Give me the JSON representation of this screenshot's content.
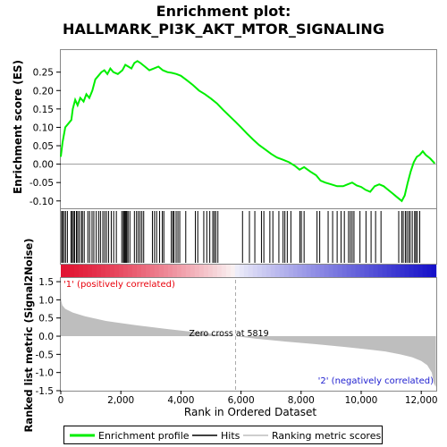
{
  "chart_data": {
    "type": "line",
    "title_line1": "Enrichment plot:",
    "title_line2": "HALLMARK_PI3K_AKT_MTOR_SIGNALING",
    "top_panel": {
      "ylabel": "Enrichment score (ES)",
      "ylim": [
        -0.12,
        0.31
      ],
      "yticks": [
        "0.25",
        "0.20",
        "0.15",
        "0.10",
        "0.05",
        "0.00",
        "-0.05",
        "-0.10"
      ],
      "ytick_values": [
        0.25,
        0.2,
        0.15,
        0.1,
        0.05,
        0.0,
        -0.05,
        -0.1
      ],
      "series_name": "Enrichment profile",
      "color": "#00ee00",
      "x": [
        0,
        60,
        150,
        250,
        350,
        400,
        480,
        560,
        650,
        760,
        850,
        950,
        1050,
        1150,
        1250,
        1350,
        1450,
        1550,
        1650,
        1750,
        1900,
        2050,
        2150,
        2250,
        2350,
        2450,
        2550,
        2650,
        2800,
        2950,
        3100,
        3250,
        3400,
        3550,
        3700,
        3850,
        4000,
        4200,
        4400,
        4600,
        4800,
        5000,
        5200,
        5400,
        5600,
        5819,
        6000,
        6200,
        6400,
        6600,
        6800,
        7000,
        7200,
        7400,
        7600,
        7800,
        7950,
        8100,
        8300,
        8500,
        8650,
        8800,
        9000,
        9200,
        9400,
        9550,
        9700,
        9850,
        10000,
        10150,
        10300,
        10450,
        10600,
        10750,
        10900,
        11050,
        11200,
        11350,
        11450,
        11550,
        11650,
        11750,
        11850,
        11950,
        12050,
        12150,
        12300,
        12450
      ],
      "y": [
        0.02,
        0.06,
        0.1,
        0.11,
        0.12,
        0.15,
        0.175,
        0.16,
        0.18,
        0.17,
        0.19,
        0.18,
        0.2,
        0.23,
        0.24,
        0.25,
        0.255,
        0.245,
        0.26,
        0.25,
        0.245,
        0.255,
        0.27,
        0.265,
        0.26,
        0.275,
        0.28,
        0.275,
        0.265,
        0.255,
        0.26,
        0.265,
        0.255,
        0.25,
        0.248,
        0.245,
        0.24,
        0.228,
        0.215,
        0.2,
        0.19,
        0.178,
        0.165,
        0.148,
        0.132,
        0.115,
        0.1,
        0.083,
        0.067,
        0.052,
        0.04,
        0.028,
        0.018,
        0.012,
        0.005,
        -0.005,
        -0.015,
        -0.008,
        -0.02,
        -0.03,
        -0.045,
        -0.05,
        -0.055,
        -0.06,
        -0.06,
        -0.055,
        -0.05,
        -0.058,
        -0.062,
        -0.07,
        -0.075,
        -0.06,
        -0.055,
        -0.06,
        -0.07,
        -0.08,
        -0.09,
        -0.1,
        -0.085,
        -0.05,
        -0.02,
        0.005,
        0.02,
        0.025,
        0.035,
        0.025,
        0.015,
        0.002
      ]
    },
    "hits_panel": {
      "series_name": "Hits",
      "hit_positions": [
        30,
        60,
        110,
        160,
        220,
        340,
        380,
        420,
        460,
        520,
        560,
        610,
        680,
        720,
        780,
        900,
        960,
        1040,
        1100,
        1180,
        1260,
        1320,
        1400,
        1460,
        1520,
        1590,
        1680,
        1760,
        1850,
        2030,
        2080,
        2110,
        2140,
        2170,
        2200,
        2240,
        2300,
        2450,
        2520,
        2580,
        2640,
        2700,
        2760,
        3050,
        3120,
        3190,
        3290,
        3380,
        3430,
        3680,
        3730,
        3770,
        3840,
        3900,
        3960,
        4160,
        4480,
        4560,
        4760,
        4860,
        4960,
        5060,
        5110,
        5160,
        5230,
        6050,
        6280,
        6460,
        6680,
        6760,
        6960,
        7060,
        7260,
        7400,
        7460,
        7540,
        7660,
        7960,
        8010,
        8100,
        8530,
        8620,
        8900,
        9050,
        9200,
        9330,
        9440,
        9580,
        9640,
        9700,
        9760,
        9960,
        10160,
        10330,
        10480,
        10660,
        11250,
        11350,
        11400,
        11470,
        11520,
        11580,
        11630,
        11700,
        11780,
        11820,
        11870,
        11950
      ]
    },
    "metric_panel": {
      "ylabel": "Ranked list metric (Signal2Noise)",
      "xlabel": "Rank in Ordered Dataset",
      "ylim": [
        -1.5,
        1.6
      ],
      "yticks": [
        "1.5",
        "1.0",
        "0.5",
        "0.0",
        "-0.5",
        "-1.0",
        "-1.5"
      ],
      "ytick_values": [
        1.5,
        1.0,
        0.5,
        0.0,
        -0.5,
        -1.0,
        -1.5
      ],
      "xticks": [
        "0",
        "2,000",
        "4,000",
        "6,000",
        "8,000",
        "10,000",
        "12,000"
      ],
      "xtick_values": [
        0,
        2000,
        4000,
        6000,
        8000,
        10000,
        12000
      ],
      "xlim": [
        0,
        12500
      ],
      "n_ranks": 12488,
      "zero_cross_label": "Zero cross at 5819",
      "zero_cross": 5819,
      "pos_label": "'1' (positively correlated)",
      "neg_label": "'2' (negatively correlated)",
      "pos_label_color": "#e8000b",
      "neg_label_color": "#2020d0",
      "fill_color": "#bebebe",
      "metric_curve": {
        "rank": [
          0,
          10,
          50,
          150,
          400,
          800,
          1500,
          2500,
          3500,
          4500,
          5200,
          5819,
          6500,
          7500,
          8500,
          9500,
          10200,
          10800,
          11300,
          11700,
          12000,
          12200,
          12350,
          12420,
          12488
        ],
        "value": [
          1.6,
          1.0,
          0.85,
          0.75,
          0.65,
          0.55,
          0.42,
          0.3,
          0.2,
          0.11,
          0.05,
          0.0,
          -0.07,
          -0.15,
          -0.22,
          -0.3,
          -0.36,
          -0.42,
          -0.5,
          -0.58,
          -0.68,
          -0.8,
          -1.0,
          -1.3,
          -1.4
        ]
      }
    },
    "legend": {
      "items": [
        "Enrichment profile",
        "Hits",
        "Ranking metric scores"
      ],
      "colors": [
        "#00ee00",
        "#000000",
        "#bebebe"
      ]
    }
  }
}
